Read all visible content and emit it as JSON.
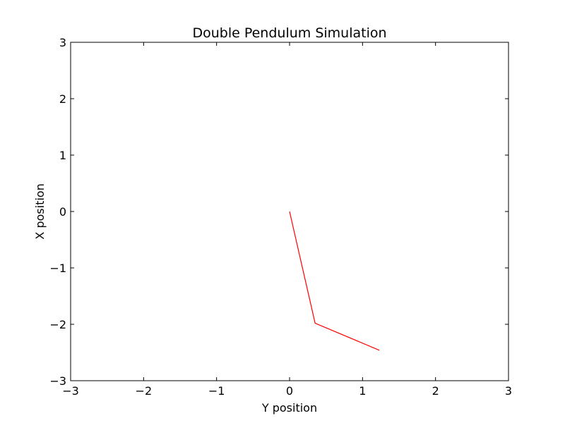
{
  "chart_data": {
    "type": "line",
    "title": "Double Pendulum Simulation",
    "xlabel": "Y position",
    "ylabel": "X position",
    "xlim": [
      -3,
      3
    ],
    "ylim": [
      -3,
      3
    ],
    "grid": false,
    "x_ticks": [
      -3,
      -2,
      -1,
      0,
      1,
      2,
      3
    ],
    "y_ticks": [
      -3,
      -2,
      -1,
      0,
      1,
      2,
      3
    ],
    "x_tick_labels": [
      "−3",
      "−2",
      "−1",
      "0",
      "1",
      "2",
      "3"
    ],
    "y_tick_labels": [
      "−3",
      "−2",
      "−1",
      "0",
      "1",
      "2",
      "3"
    ],
    "series": [
      {
        "color": "#ff0000",
        "x": [
          0,
          0.35,
          1.23
        ],
        "y": [
          0,
          -1.98,
          -2.46
        ]
      }
    ]
  }
}
